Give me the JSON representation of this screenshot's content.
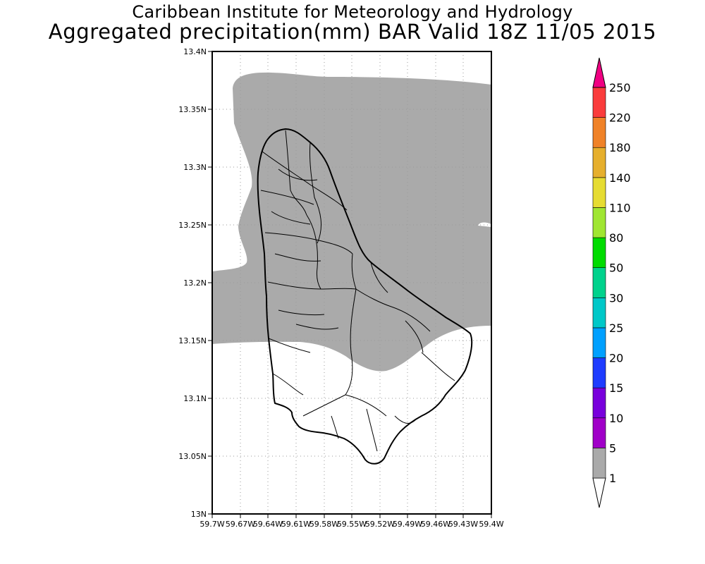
{
  "header": {
    "line1": "Caribbean Institute for Meteorology and Hydrology",
    "line2": "Aggregated precipitation(mm) BAR Valid 18Z 11/05 2015"
  },
  "map": {
    "y_ticks": [
      "13.4N",
      "13.35N",
      "13.3N",
      "13.25N",
      "13.2N",
      "13.15N",
      "13.1N",
      "13.05N",
      "13N"
    ],
    "x_ticks": [
      "59.7W",
      "59.67W",
      "59.64W",
      "59.61W",
      "59.58W",
      "59.55W",
      "59.52W",
      "59.49W",
      "59.46W",
      "59.43W",
      "59.4W"
    ],
    "lat_range": [
      13.0,
      13.4
    ],
    "lon_range": [
      -59.7,
      -59.4
    ],
    "precip_fill_color": "#aaaaaa",
    "land_outline_color": "#000000",
    "grid": "dotted"
  },
  "colorbar": {
    "levels": [
      "1",
      "5",
      "10",
      "15",
      "20",
      "25",
      "30",
      "50",
      "80",
      "110",
      "140",
      "180",
      "220",
      "250"
    ],
    "colors": [
      "#ffffff",
      "#aaaaaa",
      "#a000c8",
      "#7800dc",
      "#1e3cff",
      "#00a0ff",
      "#00c8c8",
      "#00d28c",
      "#00dc00",
      "#a0e632",
      "#e6dc32",
      "#e6af2d",
      "#f08228",
      "#fa3c3c",
      "#f00082"
    ]
  }
}
